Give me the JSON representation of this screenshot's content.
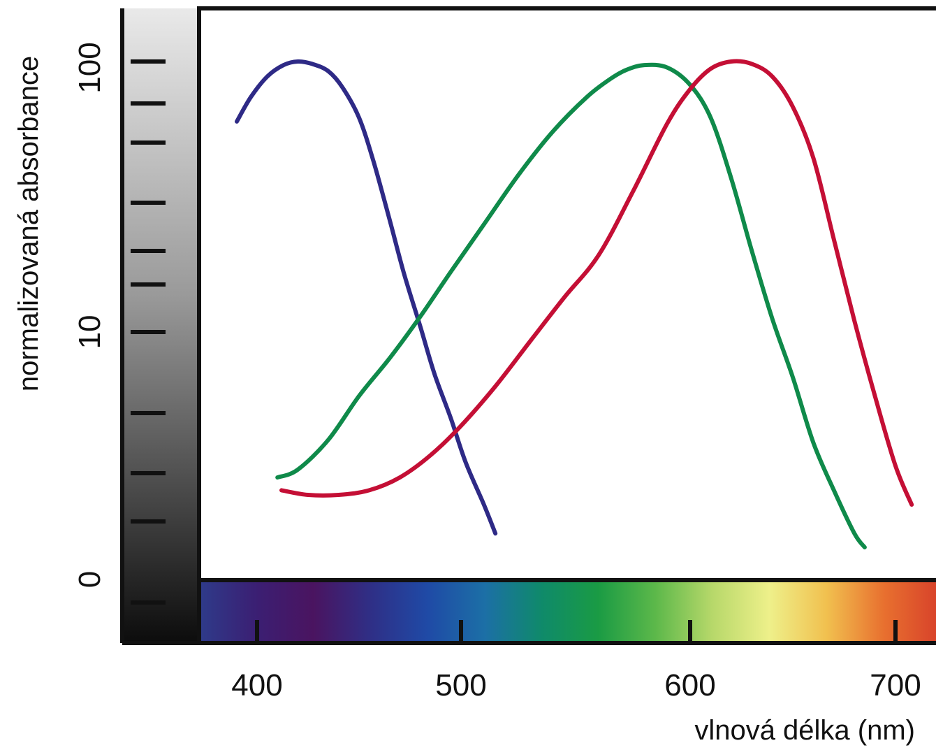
{
  "chart_data": {
    "type": "line",
    "title": "",
    "xlabel": "vlnová délka (nm)",
    "ylabel": "normalizovaná absorbance",
    "xlim": [
      380,
      720
    ],
    "x_ticks": [
      400,
      500,
      600,
      700
    ],
    "x_tick_labels": [
      "400",
      "500",
      "600",
      "700"
    ],
    "y_scale": "log",
    "y_tick_labels": [
      "0",
      "10",
      "100"
    ],
    "grid": false,
    "legend": "none",
    "series": [
      {
        "color": "#2e2a86",
        "x": [
          390,
          397,
          405,
          413,
          420,
          427,
          435,
          442,
          450,
          457,
          465,
          472,
          480,
          487,
          495,
          502,
          510,
          515
        ],
        "y": [
          60,
          74,
          88,
          97,
          100,
          98,
          92,
          80,
          62,
          43,
          26,
          16.5,
          10.5,
          7,
          4.8,
          3.3,
          2.3,
          1.8
        ]
      },
      {
        "color": "#0f8a4a",
        "x": [
          410,
          420,
          435,
          450,
          465,
          480,
          495,
          510,
          525,
          540,
          555,
          565,
          572,
          580,
          590,
          600,
          610,
          620,
          630,
          640,
          650,
          660,
          670,
          680,
          685
        ],
        "y": [
          2.9,
          3.1,
          4.0,
          5.8,
          8.0,
          11.4,
          16.7,
          25,
          38,
          55,
          74,
          86,
          93,
          97,
          95,
          82,
          62,
          37,
          20,
          11.2,
          6.8,
          3.9,
          2.6,
          1.8,
          1.6
        ]
      },
      {
        "color": "#c40f35",
        "x": [
          412,
          425,
          440,
          455,
          470,
          485,
          500,
          515,
          530,
          545,
          560,
          575,
          590,
          600,
          610,
          620,
          630,
          640,
          650,
          660,
          670,
          680,
          690,
          700,
          708
        ],
        "y": [
          2.6,
          2.5,
          2.5,
          2.6,
          2.9,
          3.5,
          4.5,
          6.3,
          9.2,
          13.4,
          19.2,
          33,
          59,
          79,
          94,
          100,
          98,
          88,
          68,
          44,
          22,
          11,
          5.8,
          3.2,
          2.3
        ]
      }
    ]
  },
  "colors": {
    "spectrum_stops": [
      "#2e3b8a",
      "#3b1f73",
      "#4a1460",
      "#2f2f86",
      "#1f4aa6",
      "#1c6fa6",
      "#0f8a6a",
      "#1a9b44",
      "#5cb84a",
      "#b7d86a",
      "#eef08a",
      "#f1c04f",
      "#e8702f",
      "#d7402a"
    ],
    "grayscale_top": "#e6e6e6",
    "grayscale_bottom": "#0d0d0d"
  }
}
